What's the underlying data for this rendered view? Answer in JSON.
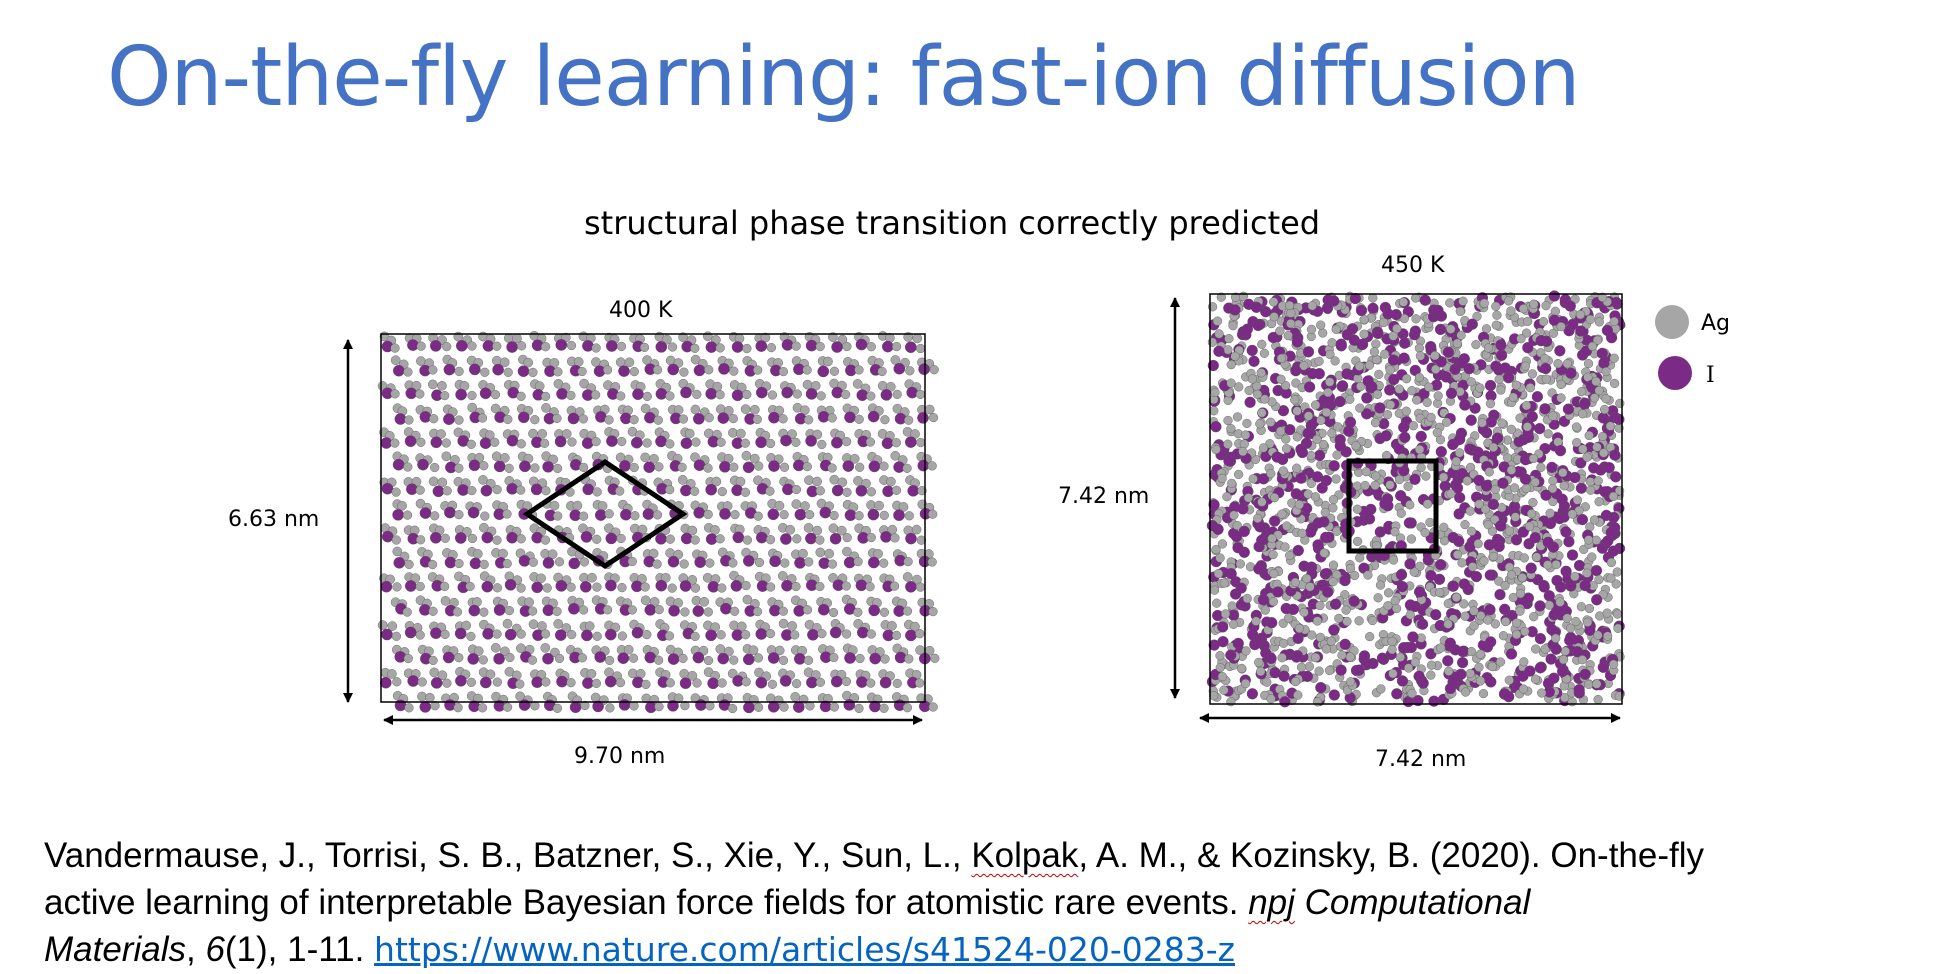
{
  "slide": {
    "title": "On-the-fly learning: fast-ion diffusion",
    "subtitle": "structural phase transition correctly predicted",
    "title_color": "#4472c4"
  },
  "panel_400k": {
    "temperature_label": "400 K",
    "height_label": "6.63 nm",
    "width_label": "9.70 nm",
    "unit_cell_shape": "rhombus"
  },
  "panel_450k": {
    "temperature_label": "450 K",
    "height_label": "7.42 nm",
    "width_label": "7.42 nm",
    "unit_cell_shape": "square"
  },
  "legend": {
    "items": [
      {
        "label": "Ag",
        "color": "#a6a6a6"
      },
      {
        "label": "I",
        "color": "#7b2a86"
      }
    ]
  },
  "citation": {
    "line1": "Vandermause, J., Torrisi, S. B., Batzner, S., Xie, Y., Sun, L., ",
    "line1_squiggle": "Kolpak",
    "line1_end": ", A. M., & Kozinsky, B. (2020). On-the-fly",
    "line2_start": "active learning of interpretable Bayesian force fields for atomistic rare events. ",
    "line2_italic_squiggle": "npj",
    "line2_italic_end": " Computational",
    "line3_italic_start": "Materials",
    "line3_comma": ", ",
    "line3_volume_italic": "6",
    "line3_rest": "(1), 1-11. ",
    "link_text": "https://www.nature.com/articles/s41524-020-0283-z",
    "link_color": "#0563c1"
  }
}
